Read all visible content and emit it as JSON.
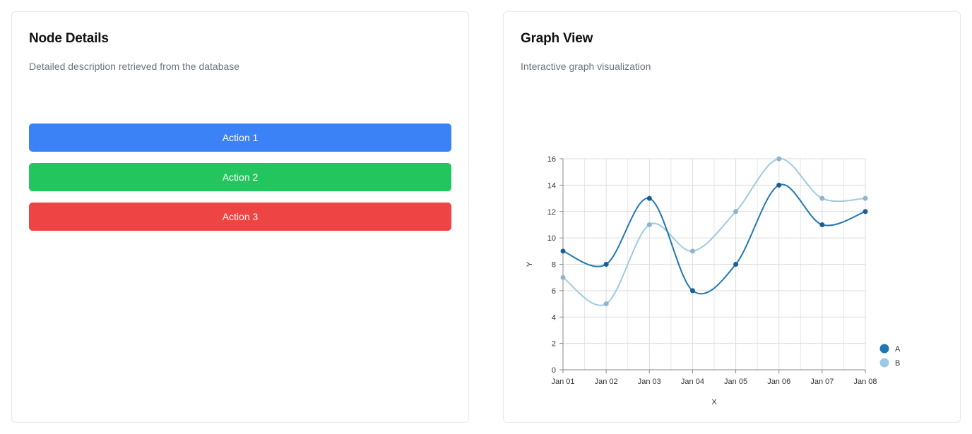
{
  "node_panel": {
    "title": "Node Details",
    "subtitle": "Detailed description retrieved from the database",
    "actions": [
      {
        "label": "Action 1",
        "color": "#3b82f6"
      },
      {
        "label": "Action 2",
        "color": "#22c55e"
      },
      {
        "label": "Action 3",
        "color": "#ef4444"
      }
    ]
  },
  "graph_panel": {
    "title": "Graph View",
    "subtitle": "Interactive graph visualization"
  },
  "chart_data": {
    "type": "line",
    "categories": [
      "Jan 01",
      "Jan 02",
      "Jan 03",
      "Jan 04",
      "Jan 05",
      "Jan 06",
      "Jan 07",
      "Jan 08"
    ],
    "series": [
      {
        "name": "A",
        "values": [
          9,
          8,
          13,
          6,
          8,
          14,
          11,
          12
        ],
        "color": "#1f77b4"
      },
      {
        "name": "B",
        "values": [
          7,
          5,
          11,
          9,
          12,
          16,
          13,
          13
        ],
        "color": "#9ecae1"
      }
    ],
    "xlabel": "X",
    "ylabel": "Y",
    "ylim": [
      0,
      16
    ],
    "yticks": [
      0,
      2,
      4,
      6,
      8,
      10,
      12,
      14,
      16
    ],
    "grid": true,
    "curve": "smooth",
    "legend_position": "bottom-right"
  }
}
